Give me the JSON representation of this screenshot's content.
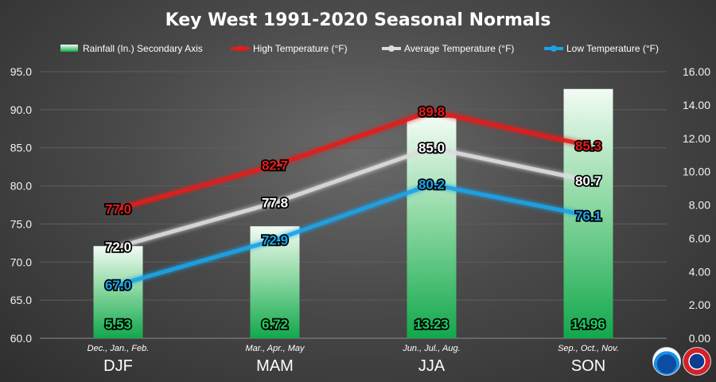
{
  "chart_data": {
    "type": "bar",
    "title": "Key West 1991-2020  Seasonal Normals",
    "categories": [
      "DJF",
      "MAM",
      "JJA",
      "SON"
    ],
    "category_sublabels": [
      "Dec., Jan., Feb.",
      "Mar., Apr., May",
      "Jun., Jul., Aug.",
      "Sep., Oct., Nov."
    ],
    "y_left": {
      "min": 60,
      "max": 95,
      "step": 5,
      "ticks": [
        "60.0",
        "65.0",
        "70.0",
        "75.0",
        "80.0",
        "85.0",
        "90.0",
        "95.0"
      ]
    },
    "y_right": {
      "min": 0,
      "max": 16,
      "step": 2,
      "ticks": [
        "0.00",
        "2.00",
        "4.00",
        "6.00",
        "8.00",
        "10.00",
        "12.00",
        "14.00",
        "16.00"
      ]
    },
    "legend_position": "top",
    "grid": true,
    "series": [
      {
        "name": "Rainfall (In.) Secondary Axis",
        "kind": "bar",
        "axis": "right",
        "color": "#1fb35a",
        "values": [
          5.53,
          6.72,
          13.23,
          14.96
        ],
        "labels": [
          "5.53",
          "6.72",
          "13.23",
          "14.96"
        ]
      },
      {
        "name": "High Temperature (°F)",
        "kind": "line",
        "axis": "left",
        "color": "#e41c1c",
        "values": [
          77.0,
          82.7,
          89.8,
          85.3
        ],
        "labels": [
          "77.0",
          "82.7",
          "89.8",
          "85.3"
        ]
      },
      {
        "name": "Average Temperature (°F)",
        "kind": "line",
        "axis": "left",
        "color": "#dcdcdc",
        "values": [
          72.0,
          77.8,
          85.0,
          80.7
        ],
        "labels": [
          "72.0",
          "77.8",
          "85.0",
          "80.7"
        ]
      },
      {
        "name": "Low Temperature (°F)",
        "kind": "line",
        "axis": "left",
        "color": "#1aa3e8",
        "values": [
          67.0,
          72.9,
          80.2,
          76.1
        ],
        "labels": [
          "67.0",
          "72.9",
          "80.2",
          "76.1"
        ]
      }
    ]
  },
  "logos": {
    "noaa": "noaa-logo",
    "nws": "nws-logo"
  }
}
